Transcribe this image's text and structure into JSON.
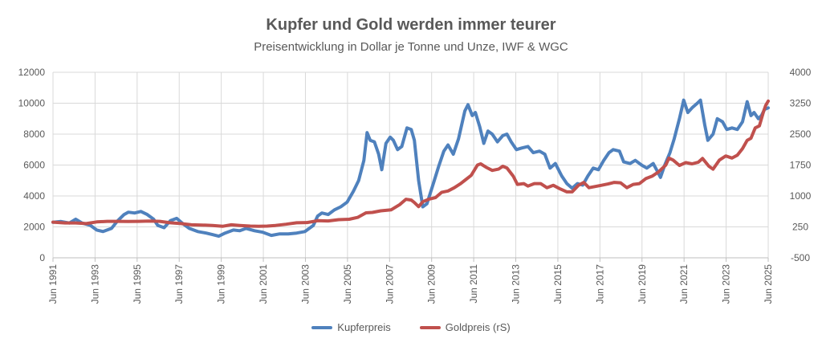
{
  "chart_data": {
    "type": "line",
    "title": "Kupfer und Gold werden immer teurer",
    "subtitle": "Preisentwicklung in Dollar je Tonne und Unze, IWF & WGC",
    "x_range": [
      1991.42,
      2025.42
    ],
    "x_ticks": [
      1991.42,
      1993.42,
      1995.42,
      1997.42,
      1999.42,
      2001.42,
      2003.42,
      2005.42,
      2007.42,
      2009.42,
      2011.42,
      2013.42,
      2015.42,
      2017.42,
      2019.42,
      2021.42,
      2023.42,
      2025.42
    ],
    "x_tick_labels": [
      "Jun 1991",
      "Jun 1993",
      "Jun 1995",
      "Jun 1997",
      "Jun 1999",
      "Jun 2001",
      "Jun 2003",
      "Jun 2005",
      "Jun 2007",
      "Jun 2009",
      "Jun 2011",
      "Jun 2013",
      "Jun 2015",
      "Jun 2017",
      "Jun 2019",
      "Jun 2021",
      "Jun 2023",
      "Jun 2025"
    ],
    "y_left": {
      "range": [
        0,
        12000
      ],
      "ticks": [
        0,
        2000,
        4000,
        6000,
        8000,
        10000,
        12000
      ],
      "tick_labels": [
        "0",
        "2000",
        "4000",
        "6000",
        "8000",
        "10000",
        "12000"
      ]
    },
    "y_right": {
      "range": [
        -500,
        4000
      ],
      "ticks": [
        -500,
        250,
        1000,
        1750,
        2500,
        3250,
        4000
      ],
      "tick_labels": [
        "-500",
        "250",
        "1000",
        "1750",
        "2500",
        "3250",
        "4000"
      ]
    },
    "grid": true,
    "legend_position": "bottom",
    "series": [
      {
        "name": "Kupferpreis",
        "axis": "left",
        "color": "#4f81bd",
        "points": [
          [
            1991.42,
            2300
          ],
          [
            1991.8,
            2350
          ],
          [
            1992.2,
            2250
          ],
          [
            1992.5,
            2500
          ],
          [
            1992.8,
            2250
          ],
          [
            1993.2,
            2100
          ],
          [
            1993.5,
            1800
          ],
          [
            1993.8,
            1700
          ],
          [
            1994.2,
            1900
          ],
          [
            1994.5,
            2400
          ],
          [
            1994.8,
            2800
          ],
          [
            1995.0,
            2950
          ],
          [
            1995.3,
            2900
          ],
          [
            1995.6,
            3000
          ],
          [
            1995.9,
            2800
          ],
          [
            1996.2,
            2500
          ],
          [
            1996.4,
            2100
          ],
          [
            1996.7,
            1950
          ],
          [
            1997.0,
            2400
          ],
          [
            1997.3,
            2550
          ],
          [
            1997.6,
            2200
          ],
          [
            1997.9,
            1900
          ],
          [
            1998.3,
            1700
          ],
          [
            1998.7,
            1600
          ],
          [
            1999.0,
            1500
          ],
          [
            1999.3,
            1400
          ],
          [
            1999.6,
            1600
          ],
          [
            2000.0,
            1800
          ],
          [
            2000.3,
            1750
          ],
          [
            2000.6,
            1900
          ],
          [
            2001.0,
            1750
          ],
          [
            2001.4,
            1650
          ],
          [
            2001.8,
            1450
          ],
          [
            2002.2,
            1550
          ],
          [
            2002.6,
            1550
          ],
          [
            2003.0,
            1600
          ],
          [
            2003.4,
            1700
          ],
          [
            2003.8,
            2100
          ],
          [
            2004.0,
            2700
          ],
          [
            2004.2,
            2900
          ],
          [
            2004.5,
            2800
          ],
          [
            2004.8,
            3100
          ],
          [
            2005.1,
            3300
          ],
          [
            2005.4,
            3600
          ],
          [
            2005.7,
            4300
          ],
          [
            2005.95,
            5000
          ],
          [
            2006.2,
            6300
          ],
          [
            2006.35,
            8100
          ],
          [
            2006.5,
            7600
          ],
          [
            2006.7,
            7500
          ],
          [
            2006.9,
            6700
          ],
          [
            2007.05,
            5700
          ],
          [
            2007.25,
            7400
          ],
          [
            2007.45,
            7800
          ],
          [
            2007.6,
            7600
          ],
          [
            2007.8,
            7000
          ],
          [
            2008.0,
            7200
          ],
          [
            2008.25,
            8400
          ],
          [
            2008.45,
            8300
          ],
          [
            2008.6,
            7600
          ],
          [
            2008.8,
            5000
          ],
          [
            2009.0,
            3300
          ],
          [
            2009.2,
            3500
          ],
          [
            2009.5,
            4800
          ],
          [
            2009.75,
            5900
          ],
          [
            2010.0,
            6900
          ],
          [
            2010.2,
            7300
          ],
          [
            2010.45,
            6700
          ],
          [
            2010.7,
            7700
          ],
          [
            2011.0,
            9500
          ],
          [
            2011.15,
            9900
          ],
          [
            2011.35,
            9200
          ],
          [
            2011.5,
            9400
          ],
          [
            2011.7,
            8500
          ],
          [
            2011.9,
            7400
          ],
          [
            2012.1,
            8200
          ],
          [
            2012.3,
            8000
          ],
          [
            2012.55,
            7500
          ],
          [
            2012.8,
            7900
          ],
          [
            2013.0,
            8000
          ],
          [
            2013.2,
            7500
          ],
          [
            2013.45,
            7000
          ],
          [
            2013.7,
            7100
          ],
          [
            2014.0,
            7200
          ],
          [
            2014.25,
            6800
          ],
          [
            2014.55,
            6900
          ],
          [
            2014.8,
            6700
          ],
          [
            2015.05,
            5800
          ],
          [
            2015.3,
            6100
          ],
          [
            2015.6,
            5300
          ],
          [
            2015.85,
            4800
          ],
          [
            2016.1,
            4500
          ],
          [
            2016.35,
            4800
          ],
          [
            2016.6,
            4700
          ],
          [
            2016.85,
            5300
          ],
          [
            2017.1,
            5800
          ],
          [
            2017.35,
            5700
          ],
          [
            2017.6,
            6300
          ],
          [
            2017.85,
            6800
          ],
          [
            2018.05,
            7000
          ],
          [
            2018.35,
            6900
          ],
          [
            2018.55,
            6200
          ],
          [
            2018.85,
            6100
          ],
          [
            2019.1,
            6300
          ],
          [
            2019.4,
            6000
          ],
          [
            2019.65,
            5800
          ],
          [
            2019.95,
            6100
          ],
          [
            2020.15,
            5600
          ],
          [
            2020.3,
            5200
          ],
          [
            2020.5,
            6000
          ],
          [
            2020.75,
            6800
          ],
          [
            2020.95,
            7700
          ],
          [
            2021.2,
            9000
          ],
          [
            2021.4,
            10200
          ],
          [
            2021.6,
            9400
          ],
          [
            2021.8,
            9700
          ],
          [
            2022.05,
            10000
          ],
          [
            2022.2,
            10200
          ],
          [
            2022.4,
            8600
          ],
          [
            2022.55,
            7600
          ],
          [
            2022.8,
            8000
          ],
          [
            2023.0,
            9000
          ],
          [
            2023.25,
            8800
          ],
          [
            2023.45,
            8300
          ],
          [
            2023.7,
            8400
          ],
          [
            2023.95,
            8300
          ],
          [
            2024.2,
            8800
          ],
          [
            2024.42,
            10100
          ],
          [
            2024.6,
            9200
          ],
          [
            2024.75,
            9400
          ],
          [
            2024.95,
            9000
          ],
          [
            2025.1,
            9200
          ],
          [
            2025.25,
            9600
          ],
          [
            2025.42,
            9700
          ]
        ]
      },
      {
        "name": "Goldpreis (rS)",
        "axis": "right",
        "color": "#c0504d",
        "points": [
          [
            1991.42,
            365
          ],
          [
            1992.0,
            345
          ],
          [
            1992.5,
            345
          ],
          [
            1993.0,
            330
          ],
          [
            1993.5,
            370
          ],
          [
            1994.0,
            385
          ],
          [
            1994.5,
            385
          ],
          [
            1995.0,
            383
          ],
          [
            1995.5,
            385
          ],
          [
            1996.0,
            390
          ],
          [
            1996.5,
            385
          ],
          [
            1997.0,
            350
          ],
          [
            1997.5,
            330
          ],
          [
            1998.0,
            300
          ],
          [
            1998.5,
            295
          ],
          [
            1999.0,
            285
          ],
          [
            1999.5,
            265
          ],
          [
            1999.9,
            300
          ],
          [
            2000.3,
            285
          ],
          [
            2000.8,
            270
          ],
          [
            2001.2,
            265
          ],
          [
            2001.6,
            270
          ],
          [
            2002.0,
            285
          ],
          [
            2002.5,
            315
          ],
          [
            2003.0,
            350
          ],
          [
            2003.5,
            355
          ],
          [
            2004.0,
            400
          ],
          [
            2004.5,
            395
          ],
          [
            2005.0,
            425
          ],
          [
            2005.5,
            435
          ],
          [
            2005.9,
            480
          ],
          [
            2006.3,
            590
          ],
          [
            2006.6,
            600
          ],
          [
            2007.0,
            640
          ],
          [
            2007.5,
            665
          ],
          [
            2007.9,
            790
          ],
          [
            2008.2,
            920
          ],
          [
            2008.45,
            900
          ],
          [
            2008.6,
            840
          ],
          [
            2008.8,
            740
          ],
          [
            2009.0,
            860
          ],
          [
            2009.3,
            925
          ],
          [
            2009.6,
            960
          ],
          [
            2009.9,
            1090
          ],
          [
            2010.2,
            1120
          ],
          [
            2010.5,
            1200
          ],
          [
            2010.8,
            1300
          ],
          [
            2011.0,
            1380
          ],
          [
            2011.3,
            1500
          ],
          [
            2011.6,
            1750
          ],
          [
            2011.75,
            1780
          ],
          [
            2012.0,
            1700
          ],
          [
            2012.3,
            1620
          ],
          [
            2012.6,
            1650
          ],
          [
            2012.8,
            1720
          ],
          [
            2013.0,
            1680
          ],
          [
            2013.3,
            1480
          ],
          [
            2013.5,
            1280
          ],
          [
            2013.8,
            1300
          ],
          [
            2014.0,
            1240
          ],
          [
            2014.3,
            1300
          ],
          [
            2014.6,
            1300
          ],
          [
            2014.9,
            1200
          ],
          [
            2015.2,
            1260
          ],
          [
            2015.5,
            1180
          ],
          [
            2015.85,
            1100
          ],
          [
            2016.1,
            1100
          ],
          [
            2016.4,
            1260
          ],
          [
            2016.65,
            1330
          ],
          [
            2016.9,
            1200
          ],
          [
            2017.2,
            1230
          ],
          [
            2017.5,
            1260
          ],
          [
            2017.8,
            1290
          ],
          [
            2018.1,
            1330
          ],
          [
            2018.4,
            1320
          ],
          [
            2018.7,
            1200
          ],
          [
            2019.0,
            1280
          ],
          [
            2019.3,
            1300
          ],
          [
            2019.6,
            1420
          ],
          [
            2019.9,
            1480
          ],
          [
            2020.2,
            1580
          ],
          [
            2020.55,
            1750
          ],
          [
            2020.7,
            1920
          ],
          [
            2020.9,
            1870
          ],
          [
            2021.2,
            1740
          ],
          [
            2021.5,
            1810
          ],
          [
            2021.8,
            1780
          ],
          [
            2022.1,
            1820
          ],
          [
            2022.3,
            1910
          ],
          [
            2022.6,
            1720
          ],
          [
            2022.8,
            1650
          ],
          [
            2023.1,
            1870
          ],
          [
            2023.4,
            1970
          ],
          [
            2023.7,
            1920
          ],
          [
            2023.95,
            1990
          ],
          [
            2024.2,
            2150
          ],
          [
            2024.42,
            2350
          ],
          [
            2024.6,
            2400
          ],
          [
            2024.8,
            2650
          ],
          [
            2025.0,
            2700
          ],
          [
            2025.2,
            3050
          ],
          [
            2025.3,
            3200
          ],
          [
            2025.42,
            3300
          ]
        ]
      }
    ]
  }
}
